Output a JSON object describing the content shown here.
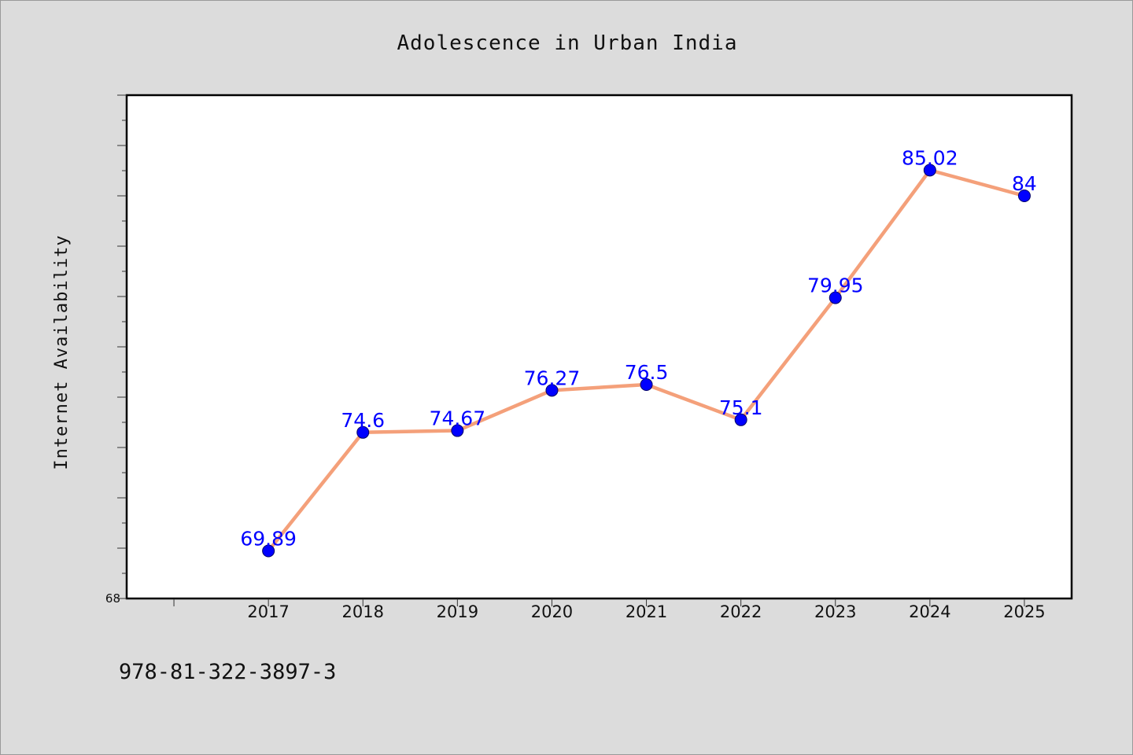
{
  "isbn": "978-81-322-3897-3",
  "colors": {
    "background": "#dcdcdc",
    "plot_background": "#ffffff",
    "line": "#f4a07a",
    "marker": "#0000ff",
    "label": "#0000ff"
  },
  "chart_data": {
    "type": "line",
    "title": "Adolescence in Urban India",
    "xlabel": "",
    "ylabel": "Internet Availability",
    "x": [
      "2017",
      "2018",
      "2019",
      "2020",
      "2021",
      "2022",
      "2023",
      "2024",
      "2025"
    ],
    "xlim": [
      2015.5,
      2025.5
    ],
    "ylim": [
      68,
      88
    ],
    "yticks_labeled": [
      "68"
    ],
    "grid": false,
    "legend": "none",
    "series": [
      {
        "values": [
          69.89,
          74.6,
          74.67,
          76.27,
          76.5,
          75.1,
          79.95,
          85.02,
          84
        ],
        "labels": [
          "69.89",
          "74.6",
          "74.67",
          "76.27",
          "76.5",
          "75.1",
          "79.95",
          "85.02",
          "84"
        ]
      }
    ]
  }
}
